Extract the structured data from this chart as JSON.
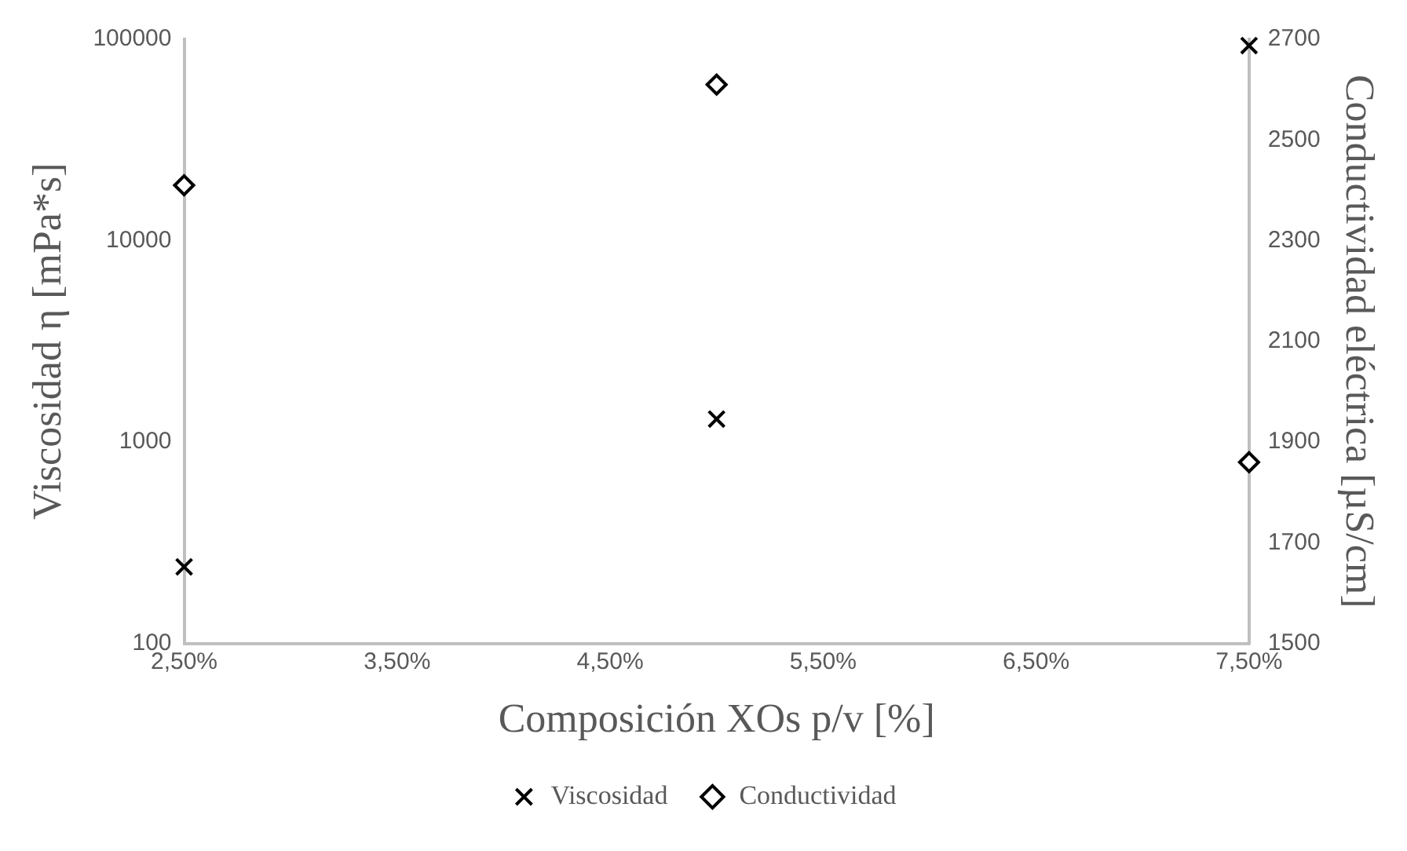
{
  "chart_data": {
    "type": "scatter",
    "xlabel": "Composición XOs p/v [%]",
    "ylabel": "Viscosidad η [mPa*s]",
    "y2label": "Conductividad eléctrica [µS/cm]",
    "xlim": [
      2.5,
      7.5
    ],
    "xticks": [
      {
        "value": 2.5,
        "label": "2,50%"
      },
      {
        "value": 3.5,
        "label": "3,50%"
      },
      {
        "value": 4.5,
        "label": "4,50%"
      },
      {
        "value": 5.5,
        "label": "5,50%"
      },
      {
        "value": 6.5,
        "label": "6,50%"
      },
      {
        "value": 7.5,
        "label": "7,50%"
      }
    ],
    "ylim": [
      100,
      100000
    ],
    "yticks": [
      100,
      1000,
      10000,
      100000
    ],
    "log": "y",
    "y2lim": [
      1500,
      2700
    ],
    "y2ticks": [
      1500,
      1700,
      1900,
      2100,
      2300,
      2500,
      2700
    ],
    "grid": false,
    "legend": "bottom",
    "series": [
      {
        "name": "Viscosidad",
        "color": "#000000",
        "marker": "cross",
        "x": [
          2.5,
          5,
          7.5
        ],
        "values": [
          240,
          1300,
          93000
        ]
      },
      {
        "name": "Conductividad",
        "color": "#000000",
        "marker": "diamond",
        "axis": "y2",
        "x": [
          2.5,
          5,
          7.5
        ],
        "values": [
          2410,
          2610,
          1860
        ]
      }
    ]
  }
}
